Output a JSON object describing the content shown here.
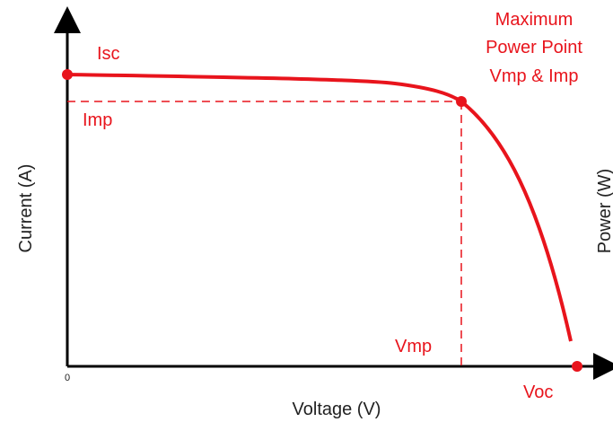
{
  "diagram": {
    "y_axis_label": "Current (A)",
    "x_axis_label": "Voltage (V)",
    "right_axis_label": "Power (W)",
    "origin_label": "0",
    "points": {
      "isc": "Isc",
      "imp": "Imp",
      "vmp": "Vmp",
      "voc": "Voc",
      "mpp_lines": [
        "Maximum",
        "Power Point",
        "Vmp & Imp"
      ]
    }
  }
}
